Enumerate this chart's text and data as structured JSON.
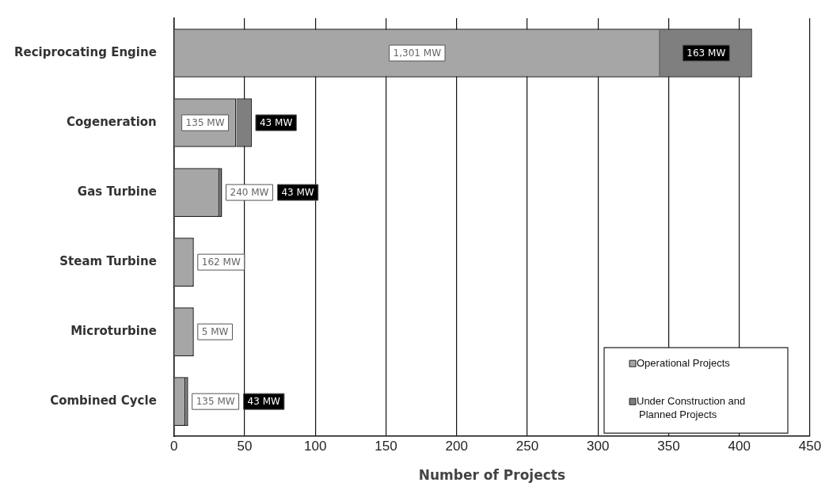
{
  "chart_data": {
    "type": "bar",
    "orientation": "horizontal",
    "stacked": true,
    "xlabel": "Number of Projects",
    "categories": [
      "Reciprocating Engine",
      "Cogeneration",
      "Gas Turbine",
      "Steam Turbine",
      "Microturbine",
      "Combined Cycle"
    ],
    "series": [
      {
        "name": "Operational Projects",
        "color": "#a6a6a6",
        "values": [
          344,
          44,
          32,
          14,
          14,
          8
        ]
      },
      {
        "name": "Under Construction and Planned Projects",
        "color": "#7f7f7f",
        "values": [
          65,
          11,
          2,
          null,
          null,
          2
        ]
      }
    ],
    "annotations": [
      "1,301 MW",
      "163 MW",
      "135 MW",
      "43 MW",
      "240 MW",
      "43 MW",
      "162 MW",
      "5 MW",
      "135 MW",
      "43 MW"
    ],
    "xlim": [
      0,
      450
    ],
    "xticks": [
      0,
      50,
      100,
      150,
      200,
      250,
      300,
      350,
      400,
      450
    ],
    "grid": "x",
    "legend": "bottom right"
  }
}
